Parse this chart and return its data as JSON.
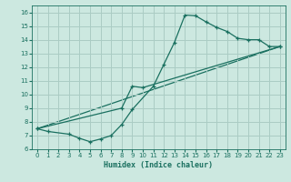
{
  "xlabel": "Humidex (Indice chaleur)",
  "background_color": "#cce8e0",
  "grid_color": "#aaccc4",
  "line_color": "#1a7060",
  "xlim": [
    -0.5,
    23.5
  ],
  "ylim": [
    6,
    16.5
  ],
  "xticks": [
    0,
    1,
    2,
    3,
    4,
    5,
    6,
    7,
    8,
    9,
    10,
    11,
    12,
    13,
    14,
    15,
    16,
    17,
    18,
    19,
    20,
    21,
    22,
    23
  ],
  "yticks": [
    6,
    7,
    8,
    9,
    10,
    11,
    12,
    13,
    14,
    15,
    16
  ],
  "curve1_x": [
    0,
    1,
    3,
    4,
    5,
    6,
    7,
    8,
    9,
    11,
    12,
    13,
    14,
    15,
    16,
    17,
    18,
    19,
    20,
    21,
    22,
    23
  ],
  "curve1_y": [
    7.5,
    7.3,
    7.1,
    6.8,
    6.55,
    6.75,
    7.0,
    7.8,
    8.9,
    10.6,
    12.2,
    13.8,
    15.8,
    15.75,
    15.3,
    14.9,
    14.6,
    14.1,
    14.0,
    14.0,
    13.5,
    13.5
  ],
  "curve2_x": [
    0,
    8,
    9,
    10,
    23
  ],
  "curve2_y": [
    7.5,
    9.0,
    10.6,
    10.5,
    13.5
  ],
  "curve3_x": [
    0,
    23
  ],
  "curve3_y": [
    7.5,
    13.5
  ]
}
